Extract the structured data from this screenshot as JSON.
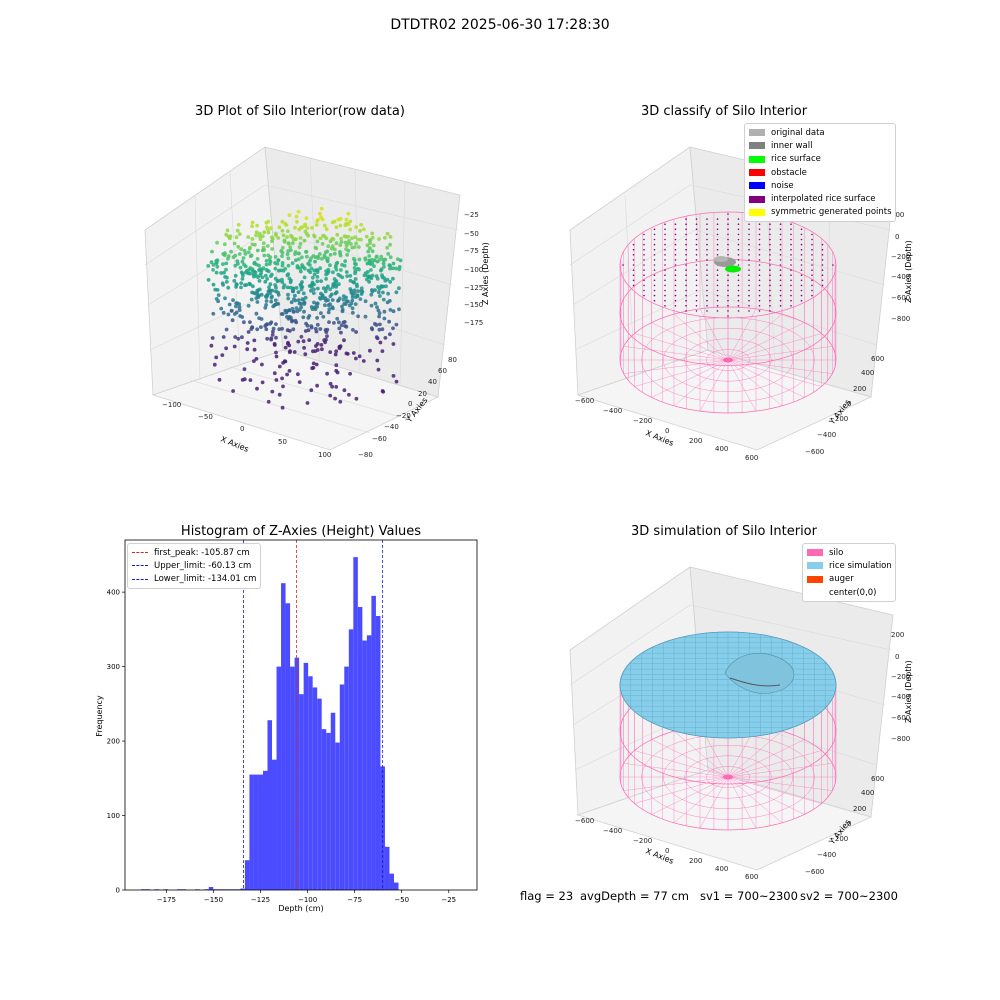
{
  "suptitle": "DTDTR02 2025-06-30 17:28:30",
  "colors": {
    "hist_bar": "#4b4bff",
    "first_peak": "#d62728",
    "limits": "#1a1acc",
    "silo": "#ff69b4",
    "rice_simulation": "#87ceeb",
    "auger": "#ff4500",
    "original_data": "#b0b0b0",
    "inner_wall": "#808080",
    "rice_surface": "#00ff00",
    "obstacle": "#ff0000",
    "noise": "#0000ff",
    "interpolated_rice_surface": "#800080",
    "symmetric_generated_points": "#ffff00"
  },
  "panels": {
    "raw": {
      "title": "3D Plot of Silo Interior(row data)",
      "xlabel": "X Axies",
      "ylabel": "Y Axies",
      "zlabel": "Z Axies (Depth)",
      "xticks": [
        "−100",
        "−50",
        "0",
        "50",
        "100"
      ],
      "yticks": [
        "−80",
        "−60",
        "−40",
        "−20",
        "0",
        "20",
        "40",
        "60",
        "80"
      ],
      "zticks": [
        "−25",
        "−50",
        "−75",
        "−100",
        "−125",
        "−150",
        "−175"
      ]
    },
    "classify": {
      "title": "3D classify of Silo Interior",
      "xlabel": "X Axies",
      "ylabel": "Y Axies",
      "zlabel": "Z Axies (Depth)",
      "xticks": [
        "−600",
        "−400",
        "−200",
        "0",
        "200",
        "400",
        "600"
      ],
      "yticks": [
        "−600",
        "−400",
        "−200",
        "0",
        "200",
        "400",
        "600"
      ],
      "zticks": [
        "200",
        "0",
        "−200",
        "−400",
        "−600",
        "−800"
      ],
      "legend": [
        {
          "label": "original data",
          "color": "#b0b0b0"
        },
        {
          "label": "inner wall",
          "color": "#808080"
        },
        {
          "label": "rice surface",
          "color": "#00ff00"
        },
        {
          "label": "obstacle",
          "color": "#ff0000"
        },
        {
          "label": "noise",
          "color": "#0000ff"
        },
        {
          "label": "interpolated rice surface",
          "color": "#800080"
        },
        {
          "label": "symmetric generated points",
          "color": "#ffff00"
        }
      ]
    },
    "simulation": {
      "title": "3D simulation of Silo Interior",
      "xlabel": "X Axies",
      "ylabel": "Y Axies",
      "zlabel": "Z Axies (Depth)",
      "xticks": [
        "−600",
        "−400",
        "−200",
        "0",
        "200",
        "400",
        "600"
      ],
      "yticks": [
        "−600",
        "−400",
        "−200",
        "0",
        "200",
        "400",
        "600"
      ],
      "zticks": [
        "200",
        "0",
        "−200",
        "−400",
        "−600",
        "−800"
      ],
      "legend": [
        {
          "label": "silo",
          "color": "#ff69b4"
        },
        {
          "label": "rice simulation",
          "color": "#87ceeb"
        },
        {
          "label": "auger",
          "color": "#ff4500"
        },
        {
          "label": "center(0,0)",
          "color": ""
        }
      ]
    }
  },
  "chart_data": {
    "type": "bar",
    "title": "Histogram of Z-Axies (Height) Values",
    "xlabel": "Depth (cm)",
    "ylabel": "Frequency",
    "xlim": [
      -197,
      -10
    ],
    "ylim": [
      0,
      470
    ],
    "xticks": [
      -175,
      -150,
      -125,
      -100,
      -75,
      -50,
      -25
    ],
    "yticks": [
      0,
      100,
      200,
      300,
      400
    ],
    "bin_width": 2.4,
    "bins": [
      [
        -188.5,
        1
      ],
      [
        -186.1,
        1
      ],
      [
        -181.3,
        1
      ],
      [
        -176.5,
        1
      ],
      [
        -169.3,
        1
      ],
      [
        -166.9,
        1
      ],
      [
        -159.7,
        1
      ],
      [
        -154.9,
        1
      ],
      [
        -152.5,
        4
      ],
      [
        -150.1,
        1
      ],
      [
        -147.7,
        1
      ],
      [
        -145.3,
        1
      ],
      [
        -142.9,
        1
      ],
      [
        -140.5,
        1
      ],
      [
        -138.1,
        1
      ],
      [
        -135.7,
        2
      ],
      [
        -133.3,
        40
      ],
      [
        -130.9,
        155
      ],
      [
        -128.5,
        155
      ],
      [
        -126.1,
        155
      ],
      [
        -123.7,
        160
      ],
      [
        -121.3,
        228
      ],
      [
        -118.9,
        175
      ],
      [
        -116.5,
        300
      ],
      [
        -114.1,
        412
      ],
      [
        -111.7,
        385
      ],
      [
        -109.3,
        300
      ],
      [
        -106.9,
        312
      ],
      [
        -104.5,
        263
      ],
      [
        -102.1,
        305
      ],
      [
        -99.7,
        287
      ],
      [
        -97.3,
        272
      ],
      [
        -94.9,
        257
      ],
      [
        -92.5,
        216
      ],
      [
        -90.1,
        211
      ],
      [
        -87.7,
        238
      ],
      [
        -85.3,
        198
      ],
      [
        -82.9,
        276
      ],
      [
        -80.5,
        300
      ],
      [
        -78.1,
        350
      ],
      [
        -75.7,
        447
      ],
      [
        -73.3,
        380
      ],
      [
        -70.9,
        335
      ],
      [
        -68.5,
        342
      ],
      [
        -66.1,
        395
      ],
      [
        -63.7,
        368
      ],
      [
        -61.3,
        166
      ],
      [
        -58.9,
        58
      ],
      [
        -56.5,
        22
      ],
      [
        -54.1,
        10
      ]
    ],
    "lines": [
      {
        "name": "first_peak: -105.87 cm",
        "value": -105.87,
        "color": "#d62728"
      },
      {
        "name": "Upper_limit: -60.13 cm",
        "value": -60.13,
        "color": "#1a1acc"
      },
      {
        "name": "Lower_limit: -134.01 cm",
        "value": -134.01,
        "color": "#1a1acc"
      }
    ]
  },
  "footer": {
    "flag": "flag = 23",
    "avg_depth": "avgDepth = 77 cm",
    "sv1": "sv1 = 700~2300",
    "sv2": "sv2 = 700~2300"
  }
}
